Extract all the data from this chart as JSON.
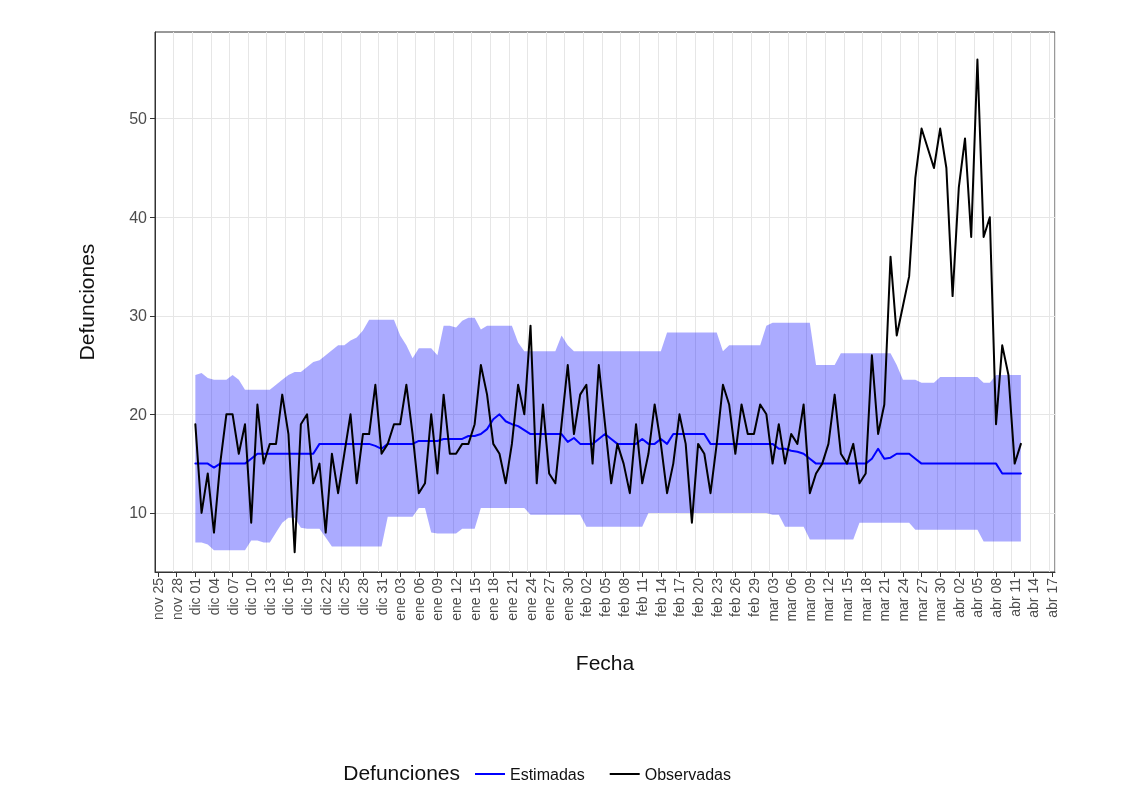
{
  "chart_data": {
    "type": "line",
    "xlabel": "Fecha",
    "ylabel": "Defunciones",
    "legend_title": "Defunciones",
    "legend": "bottom",
    "grid": true,
    "marker": "none",
    "line_style": "solid",
    "ylim": [
      4,
      58.8
    ],
    "yticks": [
      10,
      20,
      30,
      40,
      50
    ],
    "categories": [
      "nov 25",
      null,
      null,
      "nov 28",
      null,
      null,
      "dic 01",
      null,
      null,
      "dic 04",
      null,
      null,
      "dic 07",
      null,
      null,
      "dic 10",
      null,
      null,
      "dic 13",
      null,
      null,
      "dic 16",
      null,
      null,
      "dic 19",
      null,
      null,
      "dic 22",
      null,
      null,
      "dic 25",
      null,
      null,
      "dic 28",
      null,
      null,
      "dic 31",
      null,
      null,
      "ene 03",
      null,
      null,
      "ene 06",
      null,
      null,
      "ene 09",
      null,
      null,
      "ene 12",
      null,
      null,
      "ene 15",
      null,
      null,
      "ene 18",
      null,
      null,
      "ene 21",
      null,
      null,
      "ene 24",
      null,
      null,
      "ene 27",
      null,
      null,
      "ene 30",
      null,
      null,
      "feb 02",
      null,
      null,
      "feb 05",
      null,
      null,
      "feb 08",
      null,
      null,
      "feb 11",
      null,
      null,
      "feb 14",
      null,
      null,
      "feb 17",
      null,
      null,
      "feb 20",
      null,
      null,
      "feb 23",
      null,
      null,
      "feb 26",
      null,
      null,
      "feb 29",
      null,
      null,
      "mar 03",
      null,
      null,
      "mar 06",
      null,
      null,
      "mar 09",
      null,
      null,
      "mar 12",
      null,
      null,
      "mar 15",
      null,
      null,
      "mar 18",
      null,
      null,
      "mar 21",
      null,
      null,
      "mar 24",
      null,
      null,
      "mar 27",
      null,
      null,
      "mar 30",
      null,
      null,
      "abr 02",
      null,
      null,
      "abr 05",
      null,
      null,
      "abr 08",
      null,
      null,
      "abr 11",
      null,
      null,
      "abr 14",
      null,
      null,
      "abr 17"
    ],
    "series": [
      {
        "name": "Estimadas",
        "color": "#0000ff",
        "values": [
          null,
          null,
          null,
          null,
          null,
          null,
          15,
          15,
          15,
          14.6,
          15,
          15,
          15,
          15,
          15,
          15.5,
          16,
          16,
          16,
          16,
          16,
          16,
          16,
          16,
          16,
          16,
          17,
          17,
          17,
          17,
          17,
          17,
          17,
          17,
          17,
          16.8,
          16.5,
          17,
          17,
          17,
          17,
          17,
          17.3,
          17.3,
          17.3,
          17.3,
          17.5,
          17.5,
          17.5,
          17.5,
          17.8,
          17.8,
          18,
          18.5,
          19.5,
          20,
          19.3,
          19,
          18.8,
          18.4,
          18,
          18,
          18,
          18,
          18,
          18,
          17.2,
          17.6,
          17,
          17,
          17,
          17.5,
          18,
          17.5,
          17,
          17,
          17,
          17,
          17.5,
          17,
          17,
          17.5,
          17,
          18,
          18,
          18,
          18,
          18,
          18,
          17,
          17,
          17,
          17,
          17,
          17,
          17,
          17,
          17,
          17,
          17,
          16.5,
          16.5,
          16.3,
          16.2,
          16,
          15.5,
          15,
          15,
          15,
          15,
          15,
          15,
          15,
          15,
          15,
          15.5,
          16.5,
          15.5,
          15.6,
          16,
          16,
          16,
          15.5,
          15,
          15,
          15,
          15,
          15,
          15,
          15,
          15,
          15,
          15,
          15,
          15,
          15,
          14,
          14,
          14,
          14,
          null,
          null,
          null,
          null,
          null
        ],
        "lower": [
          null,
          null,
          null,
          null,
          null,
          null,
          7,
          7,
          6.8,
          6.2,
          6.2,
          6.2,
          6.2,
          6.2,
          6.2,
          7.2,
          7.2,
          7,
          7,
          8,
          9,
          9.5,
          9.5,
          8.5,
          8.4,
          8.4,
          8.4,
          7.5,
          6.6,
          6.6,
          6.6,
          6.6,
          6.6,
          6.6,
          6.6,
          6.6,
          6.6,
          9.6,
          9.6,
          9.6,
          9.6,
          9.6,
          10.5,
          10.5,
          8,
          7.9,
          7.9,
          7.9,
          7.9,
          8.4,
          8.4,
          8.4,
          10.5,
          10.5,
          10.5,
          10.5,
          10.5,
          10.5,
          10.5,
          10.5,
          9.8,
          9.8,
          9.8,
          9.8,
          9.8,
          9.8,
          9.8,
          9.8,
          9.8,
          8.6,
          8.6,
          8.6,
          8.6,
          8.6,
          8.6,
          8.6,
          8.6,
          8.6,
          8.6,
          10,
          10,
          10,
          10,
          10,
          10,
          10,
          10,
          10,
          10,
          10,
          10,
          10,
          10,
          10,
          10,
          10,
          10,
          10,
          10,
          9.8,
          9.8,
          8.6,
          8.6,
          8.6,
          8.6,
          7.3,
          7.3,
          7.3,
          7.3,
          7.3,
          7.3,
          7.3,
          7.3,
          9,
          9,
          9,
          9,
          9,
          9,
          9,
          9,
          9,
          8.3,
          8.3,
          8.3,
          8.3,
          8.3,
          8.3,
          8.3,
          8.3,
          8.3,
          8.3,
          8.3,
          7.1,
          7.1,
          7.1,
          7.1,
          7.1,
          7.1,
          7.1,
          null,
          null,
          null,
          null,
          null
        ],
        "upper": [
          null,
          null,
          null,
          null,
          null,
          null,
          24,
          24.2,
          23.7,
          23.5,
          23.5,
          23.5,
          24,
          23.5,
          22.5,
          22.5,
          22.5,
          22.5,
          22.5,
          23,
          23.5,
          24,
          24.3,
          24.3,
          24.8,
          25.3,
          25.5,
          26,
          26.5,
          27,
          27,
          27.5,
          27.8,
          28.5,
          29.6,
          29.6,
          29.6,
          29.6,
          29.6,
          28,
          27,
          25.7,
          26.7,
          26.7,
          26.7,
          26,
          29,
          29,
          28.8,
          29.5,
          29.8,
          29.8,
          28.6,
          29,
          29,
          29,
          29,
          29,
          27.3,
          26.4,
          26.4,
          26.4,
          26.4,
          26.4,
          26.4,
          28,
          27,
          26.4,
          26.4,
          26.4,
          26.4,
          26.4,
          26.4,
          26.4,
          26.4,
          26.4,
          26.4,
          26.4,
          26.4,
          26.4,
          26.4,
          26.4,
          28.3,
          28.3,
          28.3,
          28.3,
          28.3,
          28.3,
          28.3,
          28.3,
          28.3,
          26.4,
          27,
          27,
          27,
          27,
          27,
          27,
          29,
          29.3,
          29.3,
          29.3,
          29.3,
          29.3,
          29.3,
          29.3,
          25,
          25,
          25,
          25,
          26.2,
          26.2,
          26.2,
          26.2,
          26.2,
          26.2,
          26.2,
          26.2,
          26.2,
          25,
          23.5,
          23.5,
          23.5,
          23.2,
          23.2,
          23.2,
          23.8,
          23.8,
          23.8,
          23.8,
          23.8,
          23.8,
          23.8,
          23.2,
          23.2,
          24,
          24,
          24,
          24,
          24,
          null,
          null,
          null,
          null,
          null
        ]
      },
      {
        "name": "Observadas",
        "color": "#000000",
        "values": [
          null,
          null,
          null,
          null,
          null,
          null,
          19,
          10,
          14,
          8,
          15,
          20,
          20,
          16,
          19,
          9,
          21,
          15,
          17,
          17,
          22,
          18,
          6,
          19,
          20,
          13,
          15,
          8,
          16,
          12,
          16,
          20,
          13,
          18,
          18,
          23,
          16,
          17,
          19,
          19,
          23,
          18,
          12,
          13,
          20,
          14,
          22,
          16,
          16,
          17,
          17,
          19,
          25,
          22,
          17,
          16,
          13,
          17,
          23,
          20,
          29,
          13,
          21,
          14,
          13,
          19,
          25,
          18,
          22,
          23,
          15,
          25,
          19,
          13,
          17,
          15,
          12,
          19,
          13,
          16,
          21,
          17,
          12,
          15,
          20,
          17,
          9,
          17,
          16,
          12,
          17,
          23,
          21,
          16,
          21,
          18,
          18,
          21,
          20,
          15,
          19,
          15,
          18,
          17,
          21,
          12,
          14,
          15,
          17,
          22,
          16,
          15,
          17,
          13,
          14,
          26,
          18,
          21,
          36,
          28,
          31,
          34,
          44,
          49,
          47,
          45,
          49,
          45,
          32,
          43,
          48,
          38,
          56,
          38,
          40,
          19,
          27,
          24,
          15,
          17,
          null,
          null,
          null,
          null,
          null
        ]
      }
    ]
  }
}
